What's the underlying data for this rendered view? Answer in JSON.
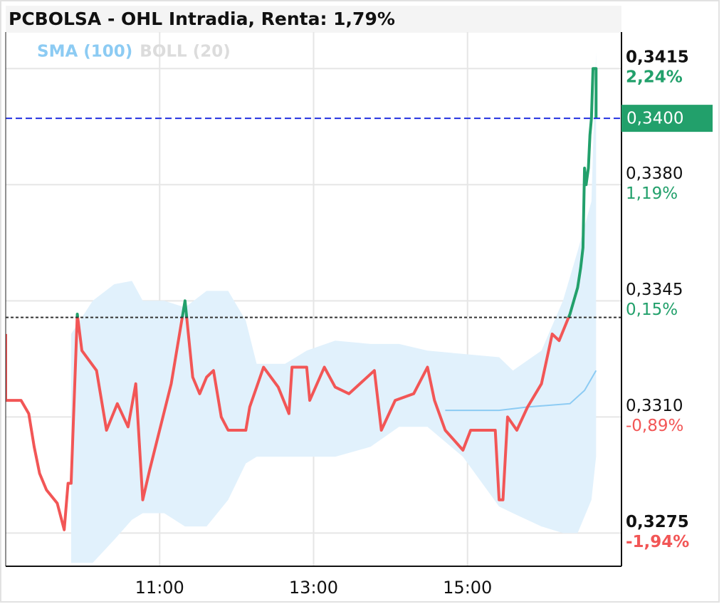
{
  "chart_data": {
    "type": "line",
    "title": "PCBOLSA - OHL Intradia, Renta: 1,79%",
    "xlim": [
      9,
      17
    ],
    "xticks": [
      {
        "value": 11,
        "label": "11:00"
      },
      {
        "value": 13,
        "label": "13:00"
      },
      {
        "value": 15,
        "label": "15:00"
      }
    ],
    "ylim": [
      0.3265,
      0.3426
    ],
    "yticks": [
      {
        "value": 0.3415,
        "label": "0,3415"
      },
      {
        "value": 0.338,
        "label": "0,3380"
      },
      {
        "value": 0.3345,
        "label": "0,3345"
      },
      {
        "value": 0.331,
        "label": "0,3310"
      },
      {
        "value": 0.3275,
        "label": "0,3275"
      }
    ],
    "ytick_changes": [
      {
        "value": 2.24,
        "label": "2,24%"
      },
      {
        "value": 1.19,
        "label": "1,19%"
      },
      {
        "value": 0.15,
        "label": "0,15%"
      },
      {
        "value": -0.89,
        "label": "-0,89%"
      },
      {
        "value": -1.94,
        "label": "-1,94%"
      }
    ],
    "grid": true,
    "reference_line": 0.334,
    "last_price": {
      "value": 0.34,
      "label": "0,3400",
      "color": "#22a06b"
    },
    "price": {
      "up_color": "#22a06b",
      "down_color": "#f25656",
      "x": [
        9.0,
        9.0,
        9.2,
        9.3,
        9.37,
        9.44,
        9.53,
        9.67,
        9.76,
        9.81,
        9.85,
        9.93,
        9.99,
        10.18,
        10.31,
        10.45,
        10.59,
        10.69,
        10.78,
        10.87,
        11.15,
        11.33,
        11.43,
        11.52,
        11.61,
        11.7,
        11.8,
        11.89,
        12.12,
        12.17,
        12.35,
        12.54,
        12.68,
        12.72,
        12.91,
        12.95,
        13.14,
        13.28,
        13.46,
        13.79,
        13.88,
        14.06,
        14.3,
        14.48,
        14.57,
        14.71,
        14.94,
        15.04,
        15.36,
        15.41,
        15.46,
        15.52,
        15.64,
        15.78,
        15.96,
        16.1,
        16.19,
        16.33,
        16.43,
        16.47,
        16.5,
        16.52,
        16.54,
        16.57,
        16.59,
        16.61,
        16.63,
        16.67,
        16.67
      ],
      "values": [
        0.3335,
        0.3315,
        0.3315,
        0.3311,
        0.3301,
        0.3293,
        0.3288,
        0.3284,
        0.3276,
        0.329,
        0.329,
        0.3341,
        0.333,
        0.3324,
        0.3306,
        0.3314,
        0.3307,
        0.332,
        0.3285,
        0.3294,
        0.332,
        0.3345,
        0.3322,
        0.3317,
        0.3322,
        0.3324,
        0.331,
        0.3306,
        0.3306,
        0.3313,
        0.3325,
        0.3319,
        0.3311,
        0.3325,
        0.3325,
        0.3315,
        0.3325,
        0.3319,
        0.3317,
        0.3324,
        0.3306,
        0.3315,
        0.3317,
        0.3325,
        0.3315,
        0.3306,
        0.33,
        0.3306,
        0.3306,
        0.3285,
        0.3285,
        0.331,
        0.3306,
        0.3313,
        0.332,
        0.3335,
        0.3333,
        0.3341,
        0.3349,
        0.3355,
        0.3361,
        0.3385,
        0.338,
        0.3385,
        0.3395,
        0.34,
        0.3415,
        0.3415,
        0.34
      ]
    },
    "sma": {
      "name": "SMA (100)",
      "color": "#8ccbf3",
      "x": [
        14.71,
        15.41,
        15.78,
        16.33,
        16.52,
        16.67
      ],
      "values": [
        0.3312,
        0.3312,
        0.3313,
        0.3314,
        0.3318,
        0.3324
      ]
    },
    "boll": {
      "name": "BOLL (20)",
      "color": "#dcdcdc",
      "fill": "#e1f1fc",
      "x": [
        9.85,
        10.13,
        10.41,
        10.64,
        10.78,
        11.06,
        11.33,
        11.61,
        11.89,
        12.12,
        12.26,
        12.63,
        12.91,
        13.28,
        13.74,
        14.11,
        14.48,
        14.94,
        15.41,
        15.59,
        15.96,
        16.24,
        16.43,
        16.61,
        16.67
      ],
      "upper": [
        0.3335,
        0.3345,
        0.335,
        0.3351,
        0.3345,
        0.3345,
        0.3343,
        0.3348,
        0.3348,
        0.3339,
        0.3326,
        0.3326,
        0.333,
        0.3333,
        0.3332,
        0.3332,
        0.333,
        0.3329,
        0.3328,
        0.3324,
        0.333,
        0.3345,
        0.336,
        0.3375,
        0.342
      ],
      "lower": [
        0.3266,
        0.3266,
        0.3273,
        0.3279,
        0.3281,
        0.3281,
        0.3277,
        0.3277,
        0.3285,
        0.3296,
        0.3298,
        0.3298,
        0.3298,
        0.3298,
        0.3301,
        0.3307,
        0.3307,
        0.3298,
        0.3283,
        0.3281,
        0.3277,
        0.3275,
        0.3275,
        0.3285,
        0.3298
      ]
    }
  }
}
